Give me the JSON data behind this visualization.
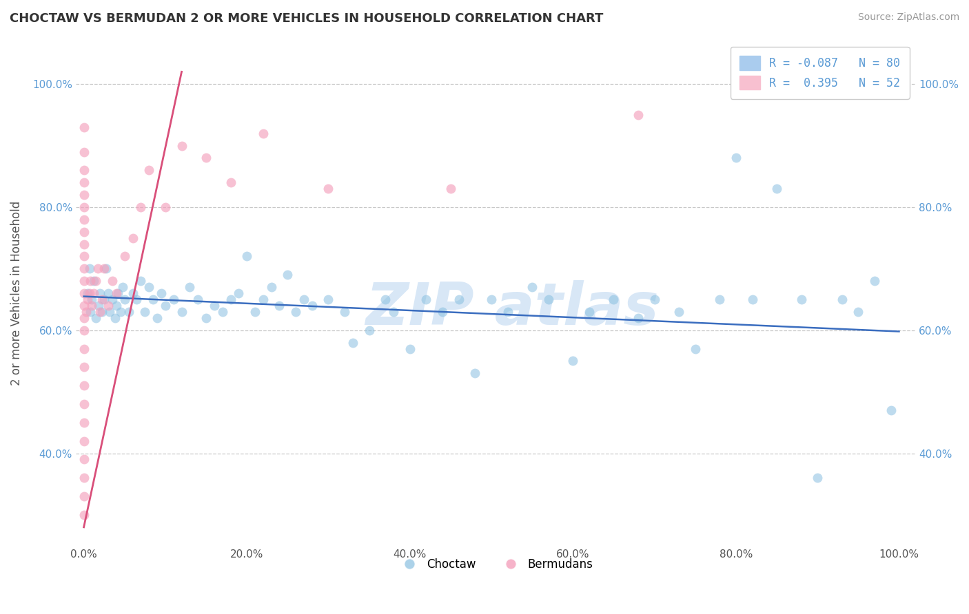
{
  "title": "CHOCTAW VS BERMUDAN 2 OR MORE VEHICLES IN HOUSEHOLD CORRELATION CHART",
  "source": "Source: ZipAtlas.com",
  "ylabel": "2 or more Vehicles in Household",
  "choctaw_color": "#89bfe0",
  "bermudan_color": "#f4a0bc",
  "choctaw_line_color": "#3a6dbf",
  "bermudan_line_color": "#d94f7a",
  "background_color": "#ffffff",
  "grid_color": "#c8c8c8",
  "choctaw_label": "Choctaw",
  "bermudan_label": "Bermudans",
  "R_choctaw": -0.087,
  "N_choctaw": 80,
  "R_bermudan": 0.395,
  "N_bermudan": 52,
  "watermark_color": "#b8d4f0",
  "choctaw_x": [
    0.005,
    0.007,
    0.008,
    0.01,
    0.012,
    0.015,
    0.018,
    0.02,
    0.022,
    0.025,
    0.027,
    0.03,
    0.032,
    0.035,
    0.038,
    0.04,
    0.042,
    0.045,
    0.048,
    0.05,
    0.055,
    0.06,
    0.065,
    0.07,
    0.075,
    0.08,
    0.085,
    0.09,
    0.095,
    0.1,
    0.11,
    0.12,
    0.13,
    0.14,
    0.15,
    0.16,
    0.17,
    0.18,
    0.19,
    0.2,
    0.21,
    0.22,
    0.23,
    0.24,
    0.25,
    0.26,
    0.27,
    0.28,
    0.3,
    0.32,
    0.33,
    0.35,
    0.37,
    0.38,
    0.4,
    0.42,
    0.44,
    0.46,
    0.48,
    0.5,
    0.52,
    0.55,
    0.57,
    0.6,
    0.62,
    0.65,
    0.68,
    0.7,
    0.73,
    0.75,
    0.78,
    0.8,
    0.82,
    0.85,
    0.88,
    0.9,
    0.93,
    0.95,
    0.97,
    0.99
  ],
  "choctaw_y": [
    0.66,
    0.7,
    0.63,
    0.65,
    0.68,
    0.62,
    0.64,
    0.66,
    0.63,
    0.65,
    0.7,
    0.66,
    0.63,
    0.65,
    0.62,
    0.64,
    0.66,
    0.63,
    0.67,
    0.65,
    0.63,
    0.66,
    0.65,
    0.68,
    0.63,
    0.67,
    0.65,
    0.62,
    0.66,
    0.64,
    0.65,
    0.63,
    0.67,
    0.65,
    0.62,
    0.64,
    0.63,
    0.65,
    0.66,
    0.72,
    0.63,
    0.65,
    0.67,
    0.64,
    0.69,
    0.63,
    0.65,
    0.64,
    0.65,
    0.63,
    0.58,
    0.6,
    0.65,
    0.63,
    0.57,
    0.65,
    0.63,
    0.65,
    0.53,
    0.65,
    0.63,
    0.67,
    0.65,
    0.55,
    0.63,
    0.65,
    0.62,
    0.65,
    0.63,
    0.57,
    0.65,
    0.88,
    0.65,
    0.83,
    0.65,
    0.36,
    0.65,
    0.63,
    0.68,
    0.47
  ],
  "bermudan_x": [
    0.0,
    0.0,
    0.0,
    0.0,
    0.0,
    0.0,
    0.0,
    0.0,
    0.0,
    0.0,
    0.0,
    0.0,
    0.0,
    0.0,
    0.0,
    0.0,
    0.0,
    0.0,
    0.0,
    0.0,
    0.0,
    0.0,
    0.0,
    0.0,
    0.0,
    0.0,
    0.003,
    0.005,
    0.007,
    0.008,
    0.01,
    0.012,
    0.015,
    0.017,
    0.02,
    0.022,
    0.025,
    0.03,
    0.035,
    0.04,
    0.05,
    0.06,
    0.07,
    0.08,
    0.1,
    0.12,
    0.15,
    0.18,
    0.22,
    0.3,
    0.45,
    0.68
  ],
  "bermudan_y": [
    0.3,
    0.33,
    0.36,
    0.39,
    0.42,
    0.45,
    0.48,
    0.51,
    0.54,
    0.57,
    0.6,
    0.62,
    0.64,
    0.66,
    0.68,
    0.7,
    0.72,
    0.74,
    0.76,
    0.78,
    0.8,
    0.82,
    0.84,
    0.86,
    0.89,
    0.93,
    0.63,
    0.65,
    0.66,
    0.68,
    0.64,
    0.66,
    0.68,
    0.7,
    0.63,
    0.65,
    0.7,
    0.64,
    0.68,
    0.66,
    0.72,
    0.75,
    0.8,
    0.86,
    0.8,
    0.9,
    0.88,
    0.84,
    0.92,
    0.83,
    0.83,
    0.95
  ],
  "xlim": [
    -0.01,
    1.02
  ],
  "ylim": [
    0.25,
    1.07
  ],
  "x_ticks": [
    0.0,
    0.2,
    0.4,
    0.6,
    0.8,
    1.0
  ],
  "y_ticks": [
    0.4,
    0.6,
    0.8,
    1.0
  ],
  "choctaw_line_x": [
    0.0,
    1.0
  ],
  "choctaw_line_y": [
    0.655,
    0.598
  ],
  "bermudan_line_x": [
    0.0,
    0.12
  ],
  "bermudan_line_y": [
    0.28,
    1.02
  ]
}
